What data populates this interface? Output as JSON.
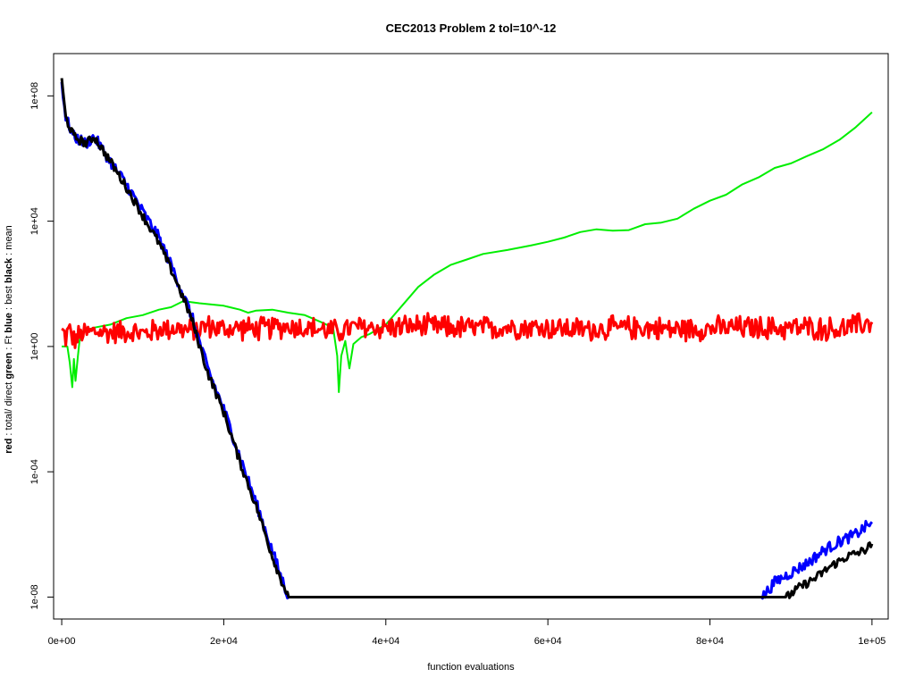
{
  "chart_data": {
    "type": "line",
    "title": "CEC2013 Problem  2  tol=10^-12",
    "xlabel": "function evaluations",
    "ylabel_parts": [
      {
        "text": "red",
        "bold": true
      },
      {
        "text": " : total/ direct  ",
        "bold": false
      },
      {
        "text": "green",
        "bold": true
      },
      {
        "text": " : Ft  ",
        "bold": false
      },
      {
        "text": "blue",
        "bold": true
      },
      {
        "text": " : best  ",
        "bold": false
      },
      {
        "text": "black",
        "bold": true
      },
      {
        "text": " : mean",
        "bold": false
      }
    ],
    "y_scale": "log10",
    "xlim": [
      -1000,
      102000
    ],
    "ylim_log10": [
      -8.7,
      9.35
    ],
    "x_ticks": [
      {
        "value": 0,
        "label": "0e+00"
      },
      {
        "value": 20000,
        "label": "2e+04"
      },
      {
        "value": 40000,
        "label": "4e+04"
      },
      {
        "value": 60000,
        "label": "6e+04"
      },
      {
        "value": 80000,
        "label": "8e+04"
      },
      {
        "value": 100000,
        "label": "1e+05"
      }
    ],
    "y_ticks": [
      {
        "value": 100000000.0,
        "label": "1e+08"
      },
      {
        "value": 10000.0,
        "label": "1e+04"
      },
      {
        "value": 1,
        "label": "1e+00"
      },
      {
        "value": 0.0001,
        "label": "1e-04"
      },
      {
        "value": 1e-08,
        "label": "1e-08"
      }
    ],
    "series": [
      {
        "key": "green",
        "color": "#00ee00",
        "width": 2,
        "points": [
          [
            0,
            1.0
          ],
          [
            700,
            1.0
          ],
          [
            1000,
            0.3
          ],
          [
            1300,
            0.05
          ],
          [
            1500,
            0.4
          ],
          [
            1700,
            0.08
          ],
          [
            2000,
            0.5
          ],
          [
            2200,
            1.5
          ],
          [
            2500,
            3.0
          ],
          [
            4000,
            4.0
          ],
          [
            6000,
            5.0
          ],
          [
            8000,
            8.0
          ],
          [
            10000,
            10.0
          ],
          [
            12000,
            15.0
          ],
          [
            13500,
            18.0
          ],
          [
            15000,
            28.0
          ],
          [
            17000,
            24.0
          ],
          [
            20000,
            20.0
          ],
          [
            22000,
            15.0
          ],
          [
            23000,
            12.0
          ],
          [
            24000,
            14.0
          ],
          [
            26000,
            15.0
          ],
          [
            28000,
            12.0
          ],
          [
            30000,
            10.0
          ],
          [
            32000,
            6.0
          ],
          [
            33500,
            4.0
          ],
          [
            34000,
            0.5
          ],
          [
            34200,
            0.035
          ],
          [
            34500,
            0.5
          ],
          [
            35000,
            1.5
          ],
          [
            35500,
            0.2
          ],
          [
            36000,
            1.2
          ],
          [
            37000,
            2.0
          ],
          [
            38000,
            2.5
          ],
          [
            40000,
            5.0
          ],
          [
            42000,
            20.0
          ],
          [
            44000,
            80.0
          ],
          [
            46000,
            200.0
          ],
          [
            48000,
            400.0
          ],
          [
            50000,
            600.0
          ],
          [
            52000,
            900.0
          ],
          [
            55000,
            1200.0
          ],
          [
            58000,
            1700.0
          ],
          [
            60000,
            2200.0
          ],
          [
            62000,
            3000.0
          ],
          [
            64000,
            4500.0
          ],
          [
            66000,
            5500.0
          ],
          [
            68000,
            5000.0
          ],
          [
            70000,
            5200.0
          ],
          [
            72000,
            8000.0
          ],
          [
            74000,
            9000.0
          ],
          [
            76000,
            12000.0
          ],
          [
            78000,
            25000.0
          ],
          [
            80000,
            45000.0
          ],
          [
            82000,
            70000.0
          ],
          [
            84000,
            150000.0
          ],
          [
            86000,
            250000.0
          ],
          [
            88000,
            500000.0
          ],
          [
            90000,
            700000.0
          ],
          [
            92000,
            1200000.0
          ],
          [
            94000,
            2000000.0
          ],
          [
            96000,
            4000000.0
          ],
          [
            98000,
            10000000.0
          ],
          [
            100000,
            30000000.0
          ]
        ]
      },
      {
        "key": "red",
        "color": "#ff0000",
        "width": 3,
        "points": [
          [
            0,
            3.0
          ],
          [
            500,
            2.0
          ],
          [
            1000,
            3.5
          ],
          [
            1500,
            1.5
          ],
          [
            2500,
            2.5
          ],
          [
            4000,
            3.0
          ],
          [
            6000,
            2.8
          ],
          [
            8000,
            3.2
          ],
          [
            10000,
            2.5
          ],
          [
            12000,
            3.5
          ],
          [
            14000,
            4.0
          ],
          [
            16000,
            3.0
          ],
          [
            18000,
            4.5
          ],
          [
            20000,
            3.5
          ],
          [
            22000,
            4.0
          ],
          [
            24000,
            3.5
          ],
          [
            26000,
            4.0
          ],
          [
            28000,
            4.5
          ],
          [
            30000,
            4.0
          ],
          [
            32000,
            3.5
          ],
          [
            34000,
            3.0
          ],
          [
            36000,
            4.0
          ],
          [
            40000,
            4.0
          ],
          [
            44000,
            4.5
          ],
          [
            48000,
            4.0
          ],
          [
            52000,
            3.8
          ],
          [
            56000,
            4.2
          ],
          [
            60000,
            4.0
          ],
          [
            64000,
            3.5
          ],
          [
            68000,
            3.8
          ],
          [
            72000,
            4.0
          ],
          [
            76000,
            3.5
          ],
          [
            80000,
            3.8
          ],
          [
            84000,
            4.0
          ],
          [
            88000,
            3.8
          ],
          [
            92000,
            4.0
          ],
          [
            96000,
            3.5
          ],
          [
            100000,
            6.0
          ]
        ]
      },
      {
        "key": "blue",
        "color": "#0000ff",
        "width": 3,
        "points": [
          [
            0,
            300000000.0
          ],
          [
            500,
            20000000.0
          ],
          [
            1500,
            5000000.0
          ],
          [
            3000,
            3000000.0
          ],
          [
            4000,
            5000000.0
          ],
          [
            6000,
            800000.0
          ],
          [
            8000,
            150000.0
          ],
          [
            10000,
            20000.0
          ],
          [
            12000,
            3000.0
          ],
          [
            14000,
            200.0
          ],
          [
            16000,
            10.0
          ],
          [
            18000,
            0.2
          ],
          [
            20000,
            0.01
          ],
          [
            22000,
            0.0003
          ],
          [
            24000,
            1e-05
          ],
          [
            26000,
            3e-07
          ],
          [
            27000,
            5e-08
          ],
          [
            28000,
            1e-08
          ],
          [
            86500,
            1e-08
          ],
          [
            88000,
            3e-08
          ],
          [
            90000,
            6e-08
          ],
          [
            92000,
            1.2e-07
          ],
          [
            94000,
            3e-07
          ],
          [
            96000,
            6e-07
          ],
          [
            98000,
            1e-06
          ],
          [
            100000,
            2.5e-06
          ]
        ]
      },
      {
        "key": "black",
        "color": "#000000",
        "width": 3,
        "points": [
          [
            0,
            300000000.0
          ],
          [
            500,
            20000000.0
          ],
          [
            1500,
            5000000.0
          ],
          [
            3000,
            3000000.0
          ],
          [
            4000,
            5000000.0
          ],
          [
            6000,
            800000.0
          ],
          [
            8000,
            120000.0
          ],
          [
            10000,
            15000.0
          ],
          [
            12000,
            2000.0
          ],
          [
            14000,
            150.0
          ],
          [
            16000,
            8.0
          ],
          [
            18000,
            0.15
          ],
          [
            20000,
            0.008
          ],
          [
            22000,
            0.0002
          ],
          [
            24000,
            8e-06
          ],
          [
            26000,
            2e-07
          ],
          [
            27000,
            4e-08
          ],
          [
            28000,
            1e-08
          ],
          [
            89500,
            1e-08
          ],
          [
            91000,
            2e-08
          ],
          [
            93000,
            4e-08
          ],
          [
            95000,
            1e-07
          ],
          [
            97000,
            2e-07
          ],
          [
            99000,
            3e-07
          ],
          [
            100000,
            5e-07
          ]
        ]
      }
    ]
  }
}
